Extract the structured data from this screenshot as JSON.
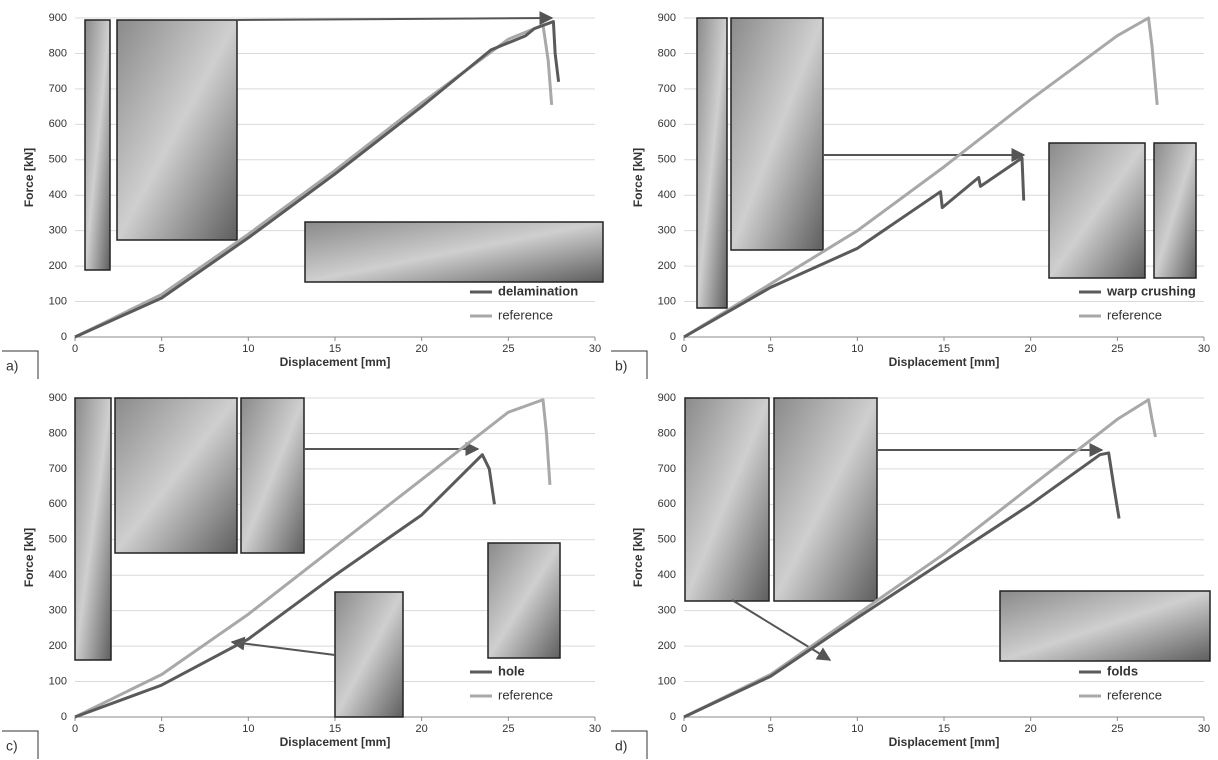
{
  "chart_data": [
    {
      "type": "line",
      "panel_label": "a)",
      "xlabel": "Displacement [mm]",
      "ylabel": "Force [kN]",
      "xlim": [
        0,
        30
      ],
      "xticks": [
        0,
        5,
        10,
        15,
        20,
        25,
        30
      ],
      "ylim": [
        0,
        900
      ],
      "yticks": [
        0,
        100,
        200,
        300,
        400,
        500,
        600,
        700,
        800,
        900
      ],
      "grid": true,
      "legend": "bottom-right",
      "series": [
        {
          "name": "delamination",
          "color": "#5a5a5a",
          "x": [
            0,
            5,
            10,
            15,
            20,
            24,
            26,
            26.5,
            27.6,
            27.7,
            27.9
          ],
          "values": [
            0,
            110,
            280,
            460,
            650,
            810,
            850,
            870,
            890,
            800,
            720
          ]
        },
        {
          "name": "reference",
          "color": "#a8a8a8",
          "x": [
            0,
            5,
            10,
            15,
            20,
            25,
            27,
            27.3,
            27.5
          ],
          "values": [
            0,
            120,
            290,
            470,
            660,
            840,
            880,
            780,
            655
          ]
        }
      ]
    },
    {
      "type": "line",
      "panel_label": "b)",
      "xlabel": "Displacement [mm]",
      "ylabel": "Force [kN]",
      "xlim": [
        0,
        30
      ],
      "xticks": [
        0,
        5,
        10,
        15,
        20,
        25,
        30
      ],
      "ylim": [
        0,
        900
      ],
      "yticks": [
        0,
        100,
        200,
        300,
        400,
        500,
        600,
        700,
        800,
        900
      ],
      "grid": true,
      "legend": "bottom-right",
      "series": [
        {
          "name": "warp crushing",
          "color": "#5a5a5a",
          "x": [
            0,
            5,
            10,
            14.8,
            14.9,
            17,
            17.1,
            19.5,
            19.6
          ],
          "values": [
            0,
            140,
            250,
            410,
            365,
            450,
            425,
            505,
            385
          ]
        },
        {
          "name": "reference",
          "color": "#a8a8a8",
          "x": [
            0,
            5,
            10,
            15,
            20,
            25,
            26.8,
            27,
            27.3
          ],
          "values": [
            0,
            150,
            300,
            480,
            670,
            850,
            900,
            820,
            655
          ]
        }
      ]
    },
    {
      "type": "line",
      "panel_label": "c)",
      "xlabel": "Displacement [mm]",
      "ylabel": "Force [kN]",
      "xlim": [
        0,
        30
      ],
      "xticks": [
        0,
        5,
        10,
        15,
        20,
        25,
        30
      ],
      "ylim": [
        0,
        900
      ],
      "yticks": [
        0,
        100,
        200,
        300,
        400,
        500,
        600,
        700,
        800,
        900
      ],
      "grid": true,
      "legend": "bottom-right",
      "series": [
        {
          "name": "hole",
          "color": "#5a5a5a",
          "x": [
            0,
            5,
            10,
            15,
            20,
            23.5,
            23.9,
            24.2
          ],
          "values": [
            0,
            90,
            220,
            400,
            570,
            740,
            700,
            600
          ]
        },
        {
          "name": "reference",
          "color": "#a8a8a8",
          "x": [
            0,
            5,
            10,
            15,
            20,
            25,
            27,
            27.2,
            27.4
          ],
          "values": [
            0,
            120,
            290,
            480,
            670,
            860,
            895,
            800,
            655
          ]
        }
      ]
    },
    {
      "type": "line",
      "panel_label": "d)",
      "xlabel": "Displacement [mm]",
      "ylabel": "Force [kN]",
      "xlim": [
        0,
        30
      ],
      "xticks": [
        0,
        5,
        10,
        15,
        20,
        25,
        30
      ],
      "ylim": [
        0,
        900
      ],
      "yticks": [
        0,
        100,
        200,
        300,
        400,
        500,
        600,
        700,
        800,
        900
      ],
      "grid": true,
      "legend": "bottom-right",
      "series": [
        {
          "name": "folds",
          "color": "#5a5a5a",
          "x": [
            0,
            5,
            10,
            15,
            20,
            24,
            24.5,
            24.8,
            25.1
          ],
          "values": [
            0,
            115,
            280,
            440,
            600,
            740,
            745,
            650,
            560
          ]
        },
        {
          "name": "reference",
          "color": "#a8a8a8",
          "x": [
            0,
            5,
            10,
            15,
            20,
            25,
            26.8,
            27,
            27.2
          ],
          "values": [
            0,
            120,
            290,
            460,
            650,
            840,
            895,
            840,
            790
          ]
        }
      ]
    }
  ]
}
